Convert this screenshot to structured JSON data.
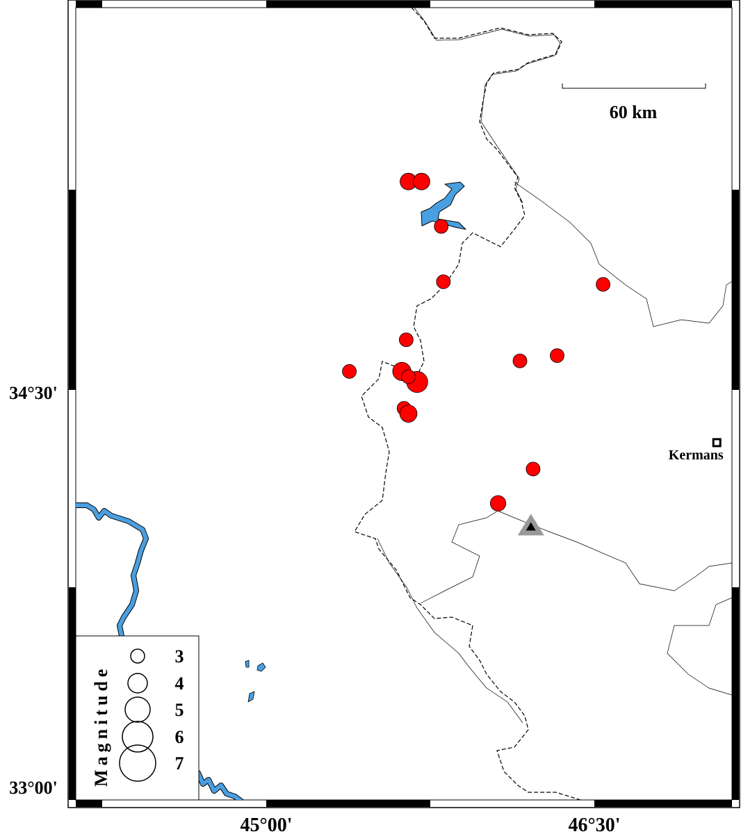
{
  "map": {
    "frame_labels": {
      "lat_1": "34°30'",
      "lat_2": "33°00'",
      "lon_1": "45°00'",
      "lon_2": "46°30'"
    },
    "extent": {
      "lon_min": 44.82,
      "lon_max": 47.0,
      "lat_min": 32.945,
      "lat_max": 35.95
    },
    "scale_bar": {
      "label": "60 km"
    },
    "city": {
      "name": "Kermans",
      "lon": 47.06,
      "lat": 34.3
    },
    "station": {
      "lon": 46.21,
      "lat": 33.98,
      "symbol": "triangle"
    },
    "colors": {
      "events": "#ff0000",
      "water": "#4a9fe0",
      "station": "#999999"
    },
    "events": [
      {
        "lon": 45.65,
        "lat": 35.29,
        "mag": 3.5
      },
      {
        "lon": 45.71,
        "lat": 35.29,
        "mag": 3.5
      },
      {
        "lon": 45.8,
        "lat": 35.12,
        "mag": 3.0
      },
      {
        "lon": 45.81,
        "lat": 34.91,
        "mag": 3.0
      },
      {
        "lon": 46.54,
        "lat": 34.9,
        "mag": 3.0
      },
      {
        "lon": 45.64,
        "lat": 34.69,
        "mag": 3.0
      },
      {
        "lon": 45.38,
        "lat": 34.57,
        "mag": 3.0
      },
      {
        "lon": 46.16,
        "lat": 34.61,
        "mag": 3.0
      },
      {
        "lon": 46.33,
        "lat": 34.63,
        "mag": 3.0
      },
      {
        "lon": 45.62,
        "lat": 34.57,
        "mag": 3.8
      },
      {
        "lon": 45.69,
        "lat": 34.53,
        "mag": 4.3
      },
      {
        "lon": 45.65,
        "lat": 34.55,
        "mag": 3.0
      },
      {
        "lon": 45.63,
        "lat": 34.43,
        "mag": 3.0
      },
      {
        "lon": 45.65,
        "lat": 34.41,
        "mag": 3.6
      },
      {
        "lon": 46.22,
        "lat": 34.2,
        "mag": 3.0
      },
      {
        "lon": 46.06,
        "lat": 34.07,
        "mag": 3.3
      }
    ],
    "legend": {
      "title": "Magnitude",
      "items": [
        {
          "label": "3",
          "mag": 3
        },
        {
          "label": "4",
          "mag": 4
        },
        {
          "label": "5",
          "mag": 5
        },
        {
          "label": "6",
          "mag": 6
        },
        {
          "label": "7",
          "mag": 7
        }
      ]
    }
  }
}
